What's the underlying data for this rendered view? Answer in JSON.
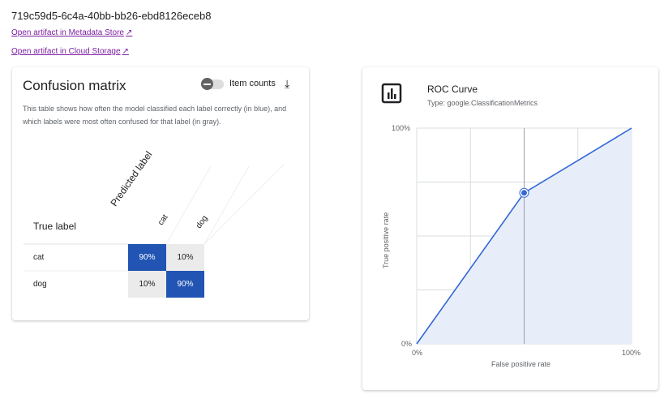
{
  "artifact_id": "719c59d5-6c4a-40bb-bb26-ebd8126eceb8",
  "links": {
    "metadata": "Open artifact in Metadata Store",
    "storage": "Open artifact in Cloud Storage"
  },
  "confusion": {
    "title": "Confusion matrix",
    "toggle_label": "Item counts",
    "toggle_on": false,
    "description": "This table shows how often the model classified each label correctly (in blue), and which labels were most often confused for that label (in gray).",
    "true_label": "True label",
    "predicted_label": "Predicted label",
    "columns": [
      "cat",
      "dog"
    ],
    "rows": [
      {
        "label": "cat",
        "values": [
          "90%",
          "10%"
        ]
      },
      {
        "label": "dog",
        "values": [
          "10%",
          "90%"
        ]
      }
    ],
    "colors": {
      "correct": "#2154b3",
      "confused": "#ebebeb"
    }
  },
  "roc": {
    "title": "ROC Curve",
    "type": "Type: google.ClassificationMetrics",
    "icon": "bar-chart-icon"
  },
  "chart_data": {
    "type": "area",
    "x": [
      0,
      0.5,
      1
    ],
    "y": [
      0,
      0.7,
      1
    ],
    "highlight_index": 1,
    "xlabel": "False positive rate",
    "ylabel": "True positive rate",
    "xticks": [
      "0%",
      "100%"
    ],
    "yticks": [
      "0%",
      "100%"
    ],
    "xlim": [
      0,
      1
    ],
    "ylim": [
      0,
      1
    ],
    "grid": true,
    "color": "#3367d6"
  }
}
